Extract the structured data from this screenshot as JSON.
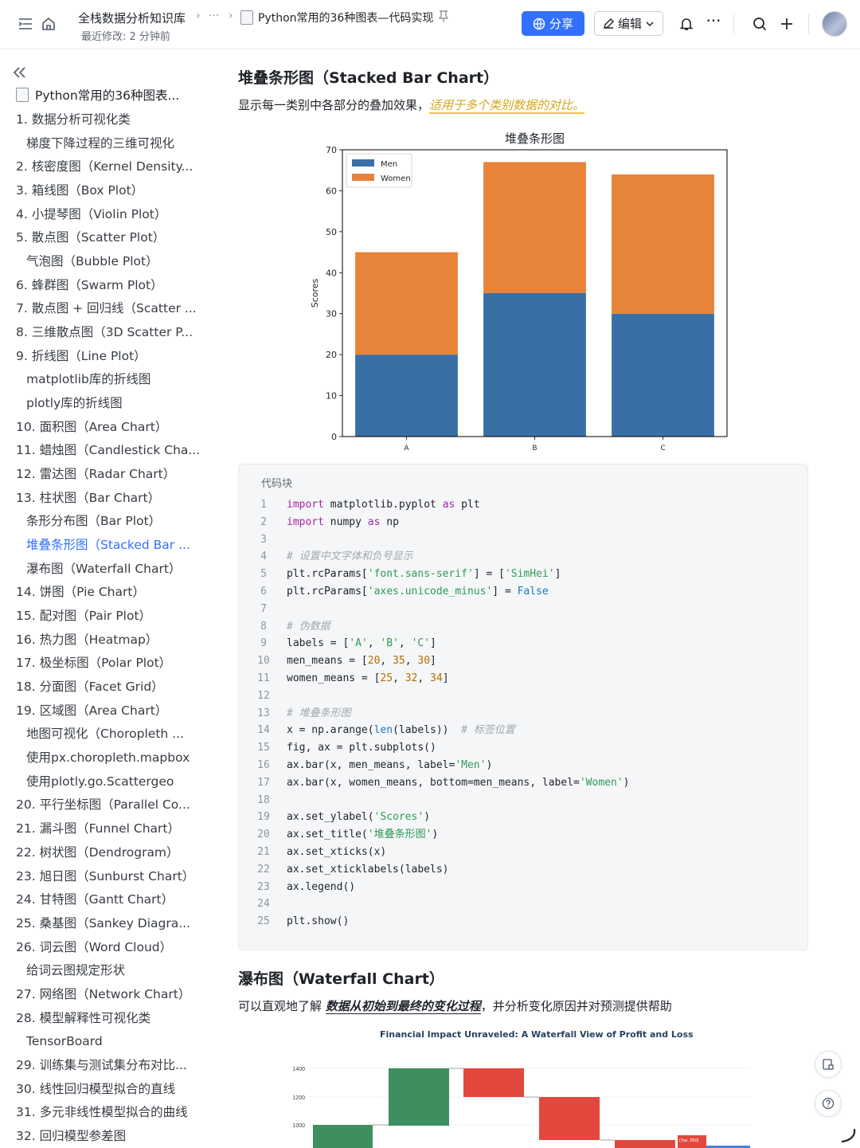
{
  "topbar": {
    "kb_title": "全栈数据分析知识库",
    "last_modified": "最近修改: 2 分钟前",
    "ellipsis": "···",
    "doc_title": "Python常用的36种图表—代码实现",
    "share_label": "分享",
    "edit_label": "编辑"
  },
  "sidebar": {
    "root_title": "Python常用的36种图表...",
    "items": [
      {
        "label": "1. 数据分析可视化类",
        "level": 1
      },
      {
        "label": "梯度下降过程的三维可视化",
        "level": 2
      },
      {
        "label": "2. 核密度图（Kernel Density...",
        "level": 1
      },
      {
        "label": "3. 箱线图（Box Plot）",
        "level": 1
      },
      {
        "label": "4. 小提琴图（Violin Plot）",
        "level": 1
      },
      {
        "label": "5. 散点图（Scatter Plot）",
        "level": 1
      },
      {
        "label": "气泡图（Bubble Plot）",
        "level": 2
      },
      {
        "label": "6. 蜂群图（Swarm Plot）",
        "level": 1
      },
      {
        "label": "7. 散点图 + 回归线（Scatter ...",
        "level": 1
      },
      {
        "label": "8. 三维散点图（3D Scatter P...",
        "level": 1
      },
      {
        "label": "9. 折线图（Line Plot）",
        "level": 1
      },
      {
        "label": "matplotlib库的折线图",
        "level": 2
      },
      {
        "label": "plotly库的折线图",
        "level": 2
      },
      {
        "label": "10. 面积图（Area Chart）",
        "level": 1
      },
      {
        "label": "11. 蜡烛图（Candlestick Cha...",
        "level": 1
      },
      {
        "label": "12. 雷达图（Radar Chart）",
        "level": 1
      },
      {
        "label": "13. 柱状图（Bar Chart）",
        "level": 1
      },
      {
        "label": "条形分布图（Bar Plot）",
        "level": 2
      },
      {
        "label": "堆叠条形图（Stacked Bar ...",
        "level": 2,
        "active": true
      },
      {
        "label": "瀑布图（Waterfall Chart）",
        "level": 2
      },
      {
        "label": "14. 饼图（Pie Chart）",
        "level": 1
      },
      {
        "label": "15. 配对图（Pair Plot）",
        "level": 1
      },
      {
        "label": "16. 热力图（Heatmap）",
        "level": 1
      },
      {
        "label": "17. 极坐标图（Polar Plot）",
        "level": 1
      },
      {
        "label": "18. 分面图（Facet Grid）",
        "level": 1
      },
      {
        "label": "19. 区域图（Area Chart）",
        "level": 1
      },
      {
        "label": "地图可视化（Choropleth ...",
        "level": 2
      },
      {
        "label": "使用px.choropleth.mapbox",
        "level": 2
      },
      {
        "label": "使用plotly.go.Scattergeo",
        "level": 2
      },
      {
        "label": "20. 平行坐标图（Parallel Co...",
        "level": 1
      },
      {
        "label": "21. 漏斗图（Funnel Chart）",
        "level": 1
      },
      {
        "label": "22. 树状图（Dendrogram）",
        "level": 1
      },
      {
        "label": "23. 旭日图（Sunburst Chart）",
        "level": 1
      },
      {
        "label": "24. 甘特图（Gantt Chart）",
        "level": 1
      },
      {
        "label": "25. 桑基图（Sankey Diagra...",
        "level": 1
      },
      {
        "label": "26. 词云图（Word Cloud）",
        "level": 1
      },
      {
        "label": "给词云图规定形状",
        "level": 2
      },
      {
        "label": "27. 网络图（Network Chart）",
        "level": 1
      },
      {
        "label": "28. 模型解释性可视化类",
        "level": 1
      },
      {
        "label": "TensorBoard",
        "level": 2
      },
      {
        "label": "29. 训练集与测试集分布对比...",
        "level": 1
      },
      {
        "label": "30. 线性回归模型拟合的直线",
        "level": 1
      },
      {
        "label": "31. 多元非线性模型拟合的曲线",
        "level": 1
      },
      {
        "label": "32. 回归模型参差图",
        "level": 1
      }
    ]
  },
  "section1": {
    "heading": "堆叠条形图（Stacked Bar Chart）",
    "desc_plain": "显示每一类别中各部分的叠加效果，",
    "desc_highlight": "适用于多个类别数据的对比。"
  },
  "chart_data": [
    {
      "type": "bar",
      "stacked": true,
      "title": "堆叠条形图",
      "ylabel": "Scores",
      "xlabel": "",
      "categories": [
        "A",
        "B",
        "C"
      ],
      "series": [
        {
          "name": "Men",
          "values": [
            20,
            35,
            30
          ],
          "color": "#3a6fa6"
        },
        {
          "name": "Women",
          "values": [
            25,
            32,
            34
          ],
          "color": "#e8833a"
        }
      ],
      "ylim": [
        0,
        70
      ],
      "yticks": [
        0,
        10,
        20,
        30,
        40,
        50,
        60,
        70
      ],
      "legend": "top-left",
      "grid": false
    },
    {
      "type": "waterfall",
      "title": "Financial Impact Unraveled: A Waterfall View of Profit and Loss",
      "yticks": [
        1000,
        1200,
        1400
      ],
      "annotation": "(Tax, 850)",
      "partial": true
    }
  ],
  "code": {
    "title": "代码块",
    "lines": [
      "import matplotlib.pyplot as plt",
      "import numpy as np",
      "",
      "# 设置中文字体和负号显示",
      "plt.rcParams['font.sans-serif'] = ['SimHei']",
      "plt.rcParams['axes.unicode_minus'] = False",
      "",
      "# 伪数据",
      "labels = ['A', 'B', 'C']",
      "men_means = [20, 35, 30]",
      "women_means = [25, 32, 34]",
      "",
      "# 堆叠条形图",
      "x = np.arange(len(labels))  # 标签位置",
      "fig, ax = plt.subplots()",
      "ax.bar(x, men_means, label='Men')",
      "ax.bar(x, women_means, bottom=men_means, label='Women')",
      "",
      "ax.set_ylabel('Scores')",
      "ax.set_title('堆叠条形图')",
      "ax.set_xticks(x)",
      "ax.set_xticklabels(labels)",
      "ax.legend()",
      "",
      "plt.show()"
    ]
  },
  "section2": {
    "heading": "瀑布图（Waterfall Chart）",
    "desc_before": "可以直观地了解 ",
    "desc_emph": "数据从初始到最终的变化过程",
    "desc_after": "，并分析变化原因并对预测提供帮助"
  },
  "colors": {
    "accent": "#3370ff",
    "men": "#3a6fa6",
    "women": "#e8833a",
    "wf_increase": "#3d8f5f",
    "wf_decrease": "#e2483d"
  }
}
